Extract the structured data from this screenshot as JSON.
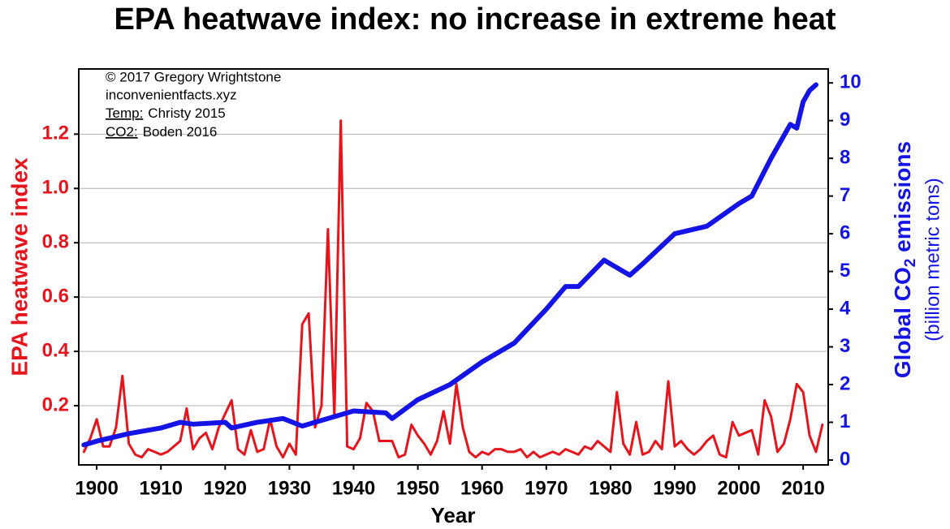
{
  "chart_data": {
    "type": "line",
    "title": "EPA heatwave index: no increase in extreme heat",
    "xlabel": "Year",
    "ylabel": "EPA heatwave index",
    "y2label_parts": [
      "Global CO",
      "2",
      " emissions"
    ],
    "y2label_unit": "(billion metric tons)",
    "annotations": [
      "© 2017 Gregory Wrightstone",
      "inconvenientfacts.xyz"
    ],
    "sources": [
      {
        "label": "Temp:",
        "text": "Christy 2015"
      },
      {
        "label": "CO2:",
        "text": "Boden 2016"
      }
    ],
    "xlim": [
      1897.2,
      2013.9
    ],
    "xticks": [
      1900,
      1910,
      1920,
      1930,
      1940,
      1950,
      1960,
      1970,
      1980,
      1990,
      2000,
      2010
    ],
    "ylim": [
      -0.018,
      1.44
    ],
    "yticks": [
      0.2,
      0.4,
      0.6,
      0.8,
      {
        "value": 1,
        "label": "1.0"
      },
      1.2
    ],
    "y2lim": [
      -0.13,
      10.37
    ],
    "y2ticks": [
      0,
      1,
      2,
      3,
      4,
      5,
      6,
      7,
      8,
      9,
      10
    ],
    "grid": true,
    "series": [
      {
        "name": "EPA heatwave index",
        "color": "#e8141c",
        "axis": "y",
        "x": [
          1898,
          1899,
          1900,
          1901,
          1902,
          1903,
          1904,
          1905,
          1906,
          1907,
          1908,
          1909,
          1910,
          1911,
          1912,
          1913,
          1914,
          1915,
          1916,
          1917,
          1918,
          1919,
          1920,
          1921,
          1922,
          1923,
          1924,
          1925,
          1926,
          1927,
          1928,
          1929,
          1930,
          1931,
          1932,
          1933,
          1934,
          1935,
          1936,
          1937,
          1938,
          1939,
          1940,
          1941,
          1942,
          1943,
          1944,
          1945,
          1946,
          1947,
          1948,
          1949,
          1950,
          1951,
          1952,
          1953,
          1954,
          1955,
          1956,
          1957,
          1958,
          1959,
          1960,
          1961,
          1962,
          1963,
          1964,
          1965,
          1966,
          1967,
          1968,
          1969,
          1970,
          1971,
          1972,
          1973,
          1974,
          1975,
          1976,
          1977,
          1978,
          1979,
          1980,
          1981,
          1982,
          1983,
          1984,
          1985,
          1986,
          1987,
          1988,
          1989,
          1990,
          1991,
          1992,
          1993,
          1994,
          1995,
          1996,
          1997,
          1998,
          1999,
          2000,
          2001,
          2002,
          2003,
          2004,
          2005,
          2006,
          2007,
          2008,
          2009,
          2010,
          2011,
          2012,
          2013
        ],
        "values": [
          0.03,
          0.08,
          0.15,
          0.05,
          0.05,
          0.12,
          0.31,
          0.06,
          0.02,
          0.01,
          0.04,
          0.03,
          0.02,
          0.03,
          0.05,
          0.07,
          0.19,
          0.04,
          0.08,
          0.1,
          0.04,
          0.12,
          0.17,
          0.22,
          0.04,
          0.02,
          0.11,
          0.03,
          0.04,
          0.15,
          0.05,
          0.01,
          0.06,
          0.02,
          0.5,
          0.54,
          0.12,
          0.2,
          0.85,
          0.16,
          1.25,
          0.05,
          0.04,
          0.08,
          0.21,
          0.18,
          0.07,
          0.07,
          0.07,
          0.01,
          0.02,
          0.13,
          0.09,
          0.06,
          0.02,
          0.07,
          0.18,
          0.06,
          0.28,
          0.12,
          0.03,
          0.01,
          0.03,
          0.02,
          0.04,
          0.04,
          0.03,
          0.03,
          0.04,
          0.01,
          0.03,
          0.01,
          0.02,
          0.03,
          0.02,
          0.04,
          0.03,
          0.02,
          0.05,
          0.04,
          0.07,
          0.05,
          0.03,
          0.25,
          0.06,
          0.02,
          0.14,
          0.02,
          0.03,
          0.07,
          0.04,
          0.29,
          0.05,
          0.07,
          0.04,
          0.02,
          0.04,
          0.07,
          0.09,
          0.02,
          0.01,
          0.14,
          0.09,
          0.1,
          0.11,
          0.02,
          0.22,
          0.16,
          0.03,
          0.06,
          0.15,
          0.28,
          0.25,
          0.09,
          0.03,
          0.13
        ]
      },
      {
        "name": "Global CO2 emissions",
        "color": "#1414e6",
        "axis": "y2",
        "x": [
          1898,
          1900,
          1905,
          1910,
          1913,
          1915,
          1920,
          1921,
          1925,
          1929,
          1932,
          1935,
          1940,
          1945,
          1946,
          1950,
          1955,
          1960,
          1965,
          1970,
          1973,
          1975,
          1979,
          1980,
          1983,
          1985,
          1990,
          1995,
          2000,
          2002,
          2005,
          2007,
          2008,
          2009,
          2010,
          2011,
          2012
        ],
        "values": [
          0.4,
          0.5,
          0.7,
          0.85,
          1.0,
          0.95,
          1.0,
          0.85,
          1.0,
          1.1,
          0.9,
          1.05,
          1.3,
          1.25,
          1.1,
          1.6,
          2.0,
          2.6,
          3.1,
          4.0,
          4.6,
          4.6,
          5.3,
          5.2,
          4.9,
          5.2,
          6.0,
          6.2,
          6.8,
          7.0,
          8.0,
          8.6,
          8.9,
          8.8,
          9.5,
          9.8,
          9.95
        ]
      }
    ]
  }
}
